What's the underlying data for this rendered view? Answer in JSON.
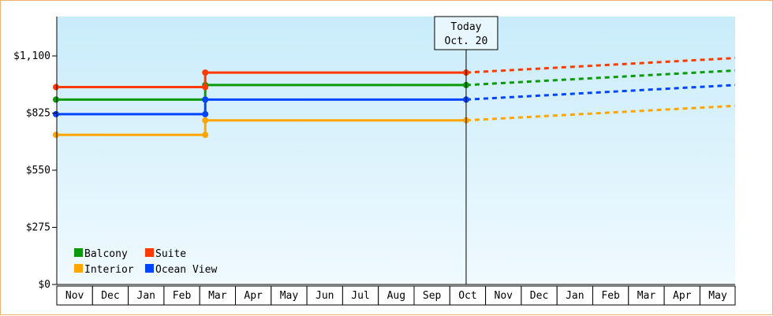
{
  "chart_data": {
    "type": "line",
    "title": "",
    "xlabel": "",
    "ylabel": "",
    "ylim": [
      0,
      1100
    ],
    "y_ticks": [
      {
        "value": 0,
        "label": "$0"
      },
      {
        "value": 275,
        "label": "$275"
      },
      {
        "value": 550,
        "label": "$550"
      },
      {
        "value": 825,
        "label": "$825"
      },
      {
        "value": 1100,
        "label": "$1,100"
      }
    ],
    "categories": [
      "Nov",
      "Dec",
      "Jan",
      "Feb",
      "Mar",
      "Apr",
      "May",
      "Jun",
      "Jul",
      "Aug",
      "Sep",
      "Oct",
      "Nov",
      "Dec",
      "Jan",
      "Feb",
      "Mar",
      "Apr",
      "May"
    ],
    "today": {
      "index": 11,
      "line1": "Today",
      "line2": "Oct. 20"
    },
    "grid": false,
    "background": {
      "top": "#c9ecfa",
      "bottom": "#f0faff"
    },
    "legend_position": "bottom-left",
    "series": [
      {
        "name": "Balcony",
        "color": "#0a9a0a",
        "history": [
          [
            0,
            890
          ],
          [
            4,
            890
          ],
          [
            4,
            960
          ],
          [
            11,
            960
          ]
        ],
        "forecast": [
          [
            11,
            960
          ],
          [
            19,
            1030
          ]
        ]
      },
      {
        "name": "Suite",
        "color": "#ff3a00",
        "history": [
          [
            0,
            950
          ],
          [
            4,
            950
          ],
          [
            4,
            1020
          ],
          [
            11,
            1020
          ]
        ],
        "forecast": [
          [
            11,
            1020
          ],
          [
            19,
            1090
          ]
        ]
      },
      {
        "name": "Interior",
        "color": "#ffa500",
        "history": [
          [
            0,
            720
          ],
          [
            4,
            720
          ],
          [
            4,
            790
          ],
          [
            11,
            790
          ]
        ],
        "forecast": [
          [
            11,
            790
          ],
          [
            19,
            860
          ]
        ]
      },
      {
        "name": "Ocean View",
        "color": "#0044ff",
        "history": [
          [
            0,
            820
          ],
          [
            4,
            820
          ],
          [
            4,
            890
          ],
          [
            11,
            890
          ]
        ],
        "forecast": [
          [
            11,
            890
          ],
          [
            19,
            960
          ]
        ]
      }
    ]
  }
}
